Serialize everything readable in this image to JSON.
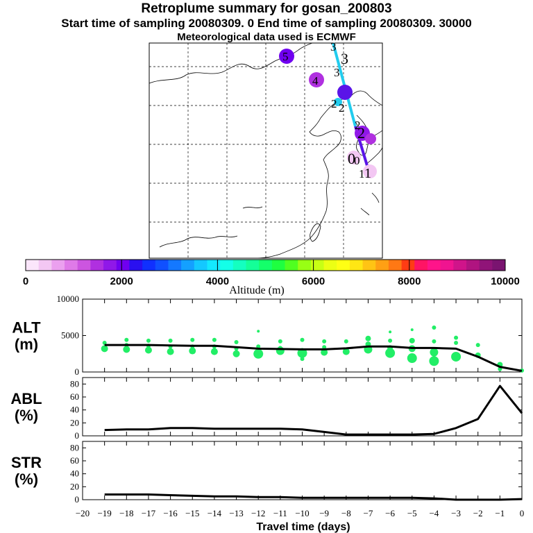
{
  "header": {
    "title": "Retroplume summary for gosan_200803",
    "subtitle": "Start time of sampling 20080309.    0     End time of sampling 20080309. 30000",
    "met": "Meteorological data used is ECMWF"
  },
  "colors": {
    "colorbar": [
      "#fbe6fb",
      "#f3c7f3",
      "#eba0ef",
      "#df7ae8",
      "#cc55e0",
      "#b030e0",
      "#9018e8",
      "#7000f0",
      "#2a10f0",
      "#1030ff",
      "#1050ff",
      "#1478ff",
      "#14a0ff",
      "#14c8ff",
      "#14e8ff",
      "#14ffe8",
      "#14ffc0",
      "#14ff98",
      "#14ff6a",
      "#1eff40",
      "#50ff20",
      "#98ff14",
      "#c8ff14",
      "#ecff14",
      "#ffff14",
      "#ffe614",
      "#ffc414",
      "#ffa014",
      "#ff7814",
      "#ff3c14",
      "#ff1464",
      "#ff148a",
      "#f01490",
      "#d0148a",
      "#b01480",
      "#901478",
      "#7a1470"
    ],
    "dots": "#22ee66",
    "line": "#000000",
    "trajectory_upper": "#22ccee",
    "trajectory_lower": "#5a14e8"
  },
  "map": {
    "cluster_labels": [
      "5",
      "4",
      "3",
      "3",
      "3",
      "2",
      "2",
      "2",
      "2",
      "0",
      "0",
      "1",
      "1"
    ],
    "cluster_colors": {
      "5": "#7000f0",
      "4": "#b030e0",
      "3": "#5a14e8",
      "2": "#9018e8",
      "0": "#eba0ef",
      "1": "#eba0ef"
    }
  },
  "colorbar": {
    "ticks": [
      "0",
      "2000",
      "4000",
      "6000",
      "8000",
      "10000"
    ],
    "label": "Altitude (m)"
  },
  "chart_data": [
    {
      "type": "line",
      "title": "ALT",
      "ylabel": "ALT (m)",
      "ylabel_top": "ALT",
      "ylabel_unit": "(m)",
      "ylim": [
        0,
        10000
      ],
      "yticks": [
        "10000",
        "5000",
        "0"
      ],
      "ytick_values": [
        10000,
        5000,
        0
      ],
      "x": [
        -19,
        -18,
        -17,
        -16,
        -15,
        -14,
        -13,
        -12,
        -11,
        -10,
        -9,
        -8,
        -7,
        -6,
        -5,
        -4,
        -3,
        -2,
        -1,
        0
      ],
      "series": [
        {
          "name": "mean altitude",
          "values": [
            3700,
            3700,
            3700,
            3650,
            3600,
            3600,
            3400,
            3200,
            3150,
            3100,
            3100,
            3250,
            3500,
            3500,
            3300,
            3300,
            3200,
            2100,
            700,
            150
          ]
        }
      ],
      "scatter": [
        {
          "x": -19,
          "y": 4000,
          "r": 3
        },
        {
          "x": -19,
          "y": 3200,
          "r": 5
        },
        {
          "x": -18,
          "y": 4400,
          "r": 3
        },
        {
          "x": -18,
          "y": 3700,
          "r": 3
        },
        {
          "x": -18,
          "y": 3100,
          "r": 5
        },
        {
          "x": -17,
          "y": 4300,
          "r": 3
        },
        {
          "x": -17,
          "y": 3600,
          "r": 3
        },
        {
          "x": -17,
          "y": 3000,
          "r": 5
        },
        {
          "x": -16,
          "y": 4300,
          "r": 3
        },
        {
          "x": -16,
          "y": 3500,
          "r": 3
        },
        {
          "x": -16,
          "y": 2800,
          "r": 5
        },
        {
          "x": -15,
          "y": 4400,
          "r": 3
        },
        {
          "x": -15,
          "y": 3500,
          "r": 3
        },
        {
          "x": -15,
          "y": 2900,
          "r": 5
        },
        {
          "x": -14,
          "y": 4400,
          "r": 3
        },
        {
          "x": -14,
          "y": 3500,
          "r": 3
        },
        {
          "x": -14,
          "y": 2800,
          "r": 5
        },
        {
          "x": -13,
          "y": 4100,
          "r": 3
        },
        {
          "x": -13,
          "y": 3200,
          "r": 3
        },
        {
          "x": -13,
          "y": 2500,
          "r": 5
        },
        {
          "x": -12,
          "y": 5600,
          "r": 2
        },
        {
          "x": -12,
          "y": 3500,
          "r": 3
        },
        {
          "x": -12,
          "y": 2500,
          "r": 7
        },
        {
          "x": -11,
          "y": 4200,
          "r": 3
        },
        {
          "x": -11,
          "y": 3300,
          "r": 3
        },
        {
          "x": -11,
          "y": 2900,
          "r": 6
        },
        {
          "x": -10,
          "y": 4400,
          "r": 3
        },
        {
          "x": -10,
          "y": 3000,
          "r": 3
        },
        {
          "x": -10,
          "y": 2600,
          "r": 7
        },
        {
          "x": -10,
          "y": 1800,
          "r": 3
        },
        {
          "x": -9,
          "y": 4200,
          "r": 3
        },
        {
          "x": -9,
          "y": 3400,
          "r": 3
        },
        {
          "x": -9,
          "y": 2700,
          "r": 5
        },
        {
          "x": -8,
          "y": 4200,
          "r": 3
        },
        {
          "x": -8,
          "y": 3000,
          "r": 3
        },
        {
          "x": -8,
          "y": 2800,
          "r": 5
        },
        {
          "x": -7,
          "y": 4600,
          "r": 4
        },
        {
          "x": -7,
          "y": 3800,
          "r": 4
        },
        {
          "x": -7,
          "y": 3100,
          "r": 6
        },
        {
          "x": -6,
          "y": 5500,
          "r": 2
        },
        {
          "x": -6,
          "y": 4300,
          "r": 3
        },
        {
          "x": -6,
          "y": 3300,
          "r": 4
        },
        {
          "x": -6,
          "y": 2600,
          "r": 7
        },
        {
          "x": -5,
          "y": 5800,
          "r": 2
        },
        {
          "x": -5,
          "y": 4300,
          "r": 4
        },
        {
          "x": -5,
          "y": 3200,
          "r": 5
        },
        {
          "x": -5,
          "y": 1900,
          "r": 7
        },
        {
          "x": -4,
          "y": 6100,
          "r": 3
        },
        {
          "x": -4,
          "y": 4200,
          "r": 3
        },
        {
          "x": -4,
          "y": 2700,
          "r": 6
        },
        {
          "x": -4,
          "y": 1500,
          "r": 7
        },
        {
          "x": -3,
          "y": 4700,
          "r": 3
        },
        {
          "x": -3,
          "y": 4000,
          "r": 3
        },
        {
          "x": -3,
          "y": 2100,
          "r": 7
        },
        {
          "x": -2,
          "y": 3700,
          "r": 3
        },
        {
          "x": -2,
          "y": 2300,
          "r": 4
        },
        {
          "x": -1,
          "y": 1000,
          "r": 4
        },
        {
          "x": -1,
          "y": 400,
          "r": 3
        },
        {
          "x": 0,
          "y": 200,
          "r": 3
        }
      ]
    },
    {
      "type": "line",
      "title": "ABL",
      "ylabel": "ABL (%)",
      "ylabel_top": "ABL",
      "ylabel_unit": "(%)",
      "ylim": [
        0,
        90
      ],
      "yticks": [
        "80",
        "60",
        "40",
        "20",
        "0"
      ],
      "ytick_values": [
        80,
        60,
        40,
        20,
        0
      ],
      "x": [
        -19,
        -18,
        -17,
        -16,
        -15,
        -14,
        -13,
        -12,
        -11,
        -10,
        -9,
        -8,
        -7,
        -6,
        -5,
        -4,
        -3,
        -2,
        -1,
        0
      ],
      "series": [
        {
          "name": "ABL fraction",
          "values": [
            9,
            10,
            10,
            12,
            12,
            11,
            11,
            11,
            11,
            10,
            6,
            2,
            2,
            2,
            2,
            3,
            12,
            26,
            77,
            35
          ]
        }
      ]
    },
    {
      "type": "line",
      "title": "STR",
      "ylabel": "STR (%)",
      "ylabel_top": "STR",
      "ylabel_unit": "(%)",
      "ylim": [
        0,
        90
      ],
      "yticks": [
        "80",
        "60",
        "40",
        "20",
        "0"
      ],
      "ytick_values": [
        80,
        60,
        40,
        20,
        0
      ],
      "xlabel": "Travel time (days)",
      "xticks": [
        "−20",
        "−19",
        "−18",
        "−17",
        "−16",
        "−15",
        "−14",
        "−13",
        "−12",
        "−11",
        "−10",
        "−9",
        "−8",
        "−7",
        "−6",
        "−5",
        "−4",
        "−3",
        "−2",
        "−1",
        "0"
      ],
      "xtick_values": [
        -20,
        -19,
        -18,
        -17,
        -16,
        -15,
        -14,
        -13,
        -12,
        -11,
        -10,
        -9,
        -8,
        -7,
        -6,
        -5,
        -4,
        -3,
        -2,
        -1,
        0
      ],
      "x": [
        -19,
        -18,
        -17,
        -16,
        -15,
        -14,
        -13,
        -12,
        -11,
        -10,
        -9,
        -8,
        -7,
        -6,
        -5,
        -4,
        -3,
        -2,
        -1,
        0
      ],
      "series": [
        {
          "name": "stratosphere fraction",
          "values": [
            8,
            8,
            8,
            7,
            6,
            5,
            5,
            4,
            4,
            3,
            3,
            3,
            3,
            3,
            3,
            2,
            0,
            0,
            0,
            1
          ]
        }
      ]
    }
  ]
}
